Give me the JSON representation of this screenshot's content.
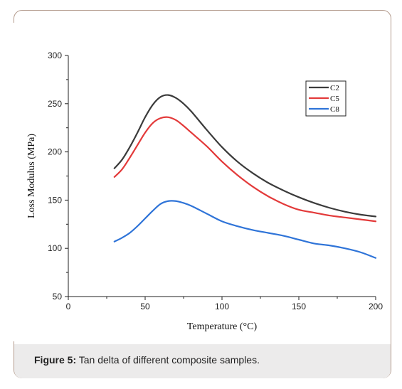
{
  "figure": {
    "caption_label": "Figure 5:",
    "caption_text": " Tan delta of different composite samples."
  },
  "chart_data": {
    "type": "line",
    "xlabel": "Temperature (°C)",
    "ylabel": "Loss Modulus (MPa)",
    "xlim": [
      0,
      200
    ],
    "ylim": [
      50,
      300
    ],
    "xticks": [
      0,
      50,
      100,
      150,
      200
    ],
    "yticks": [
      50,
      100,
      150,
      200,
      250,
      300
    ],
    "grid": false,
    "legend_position": "top-right",
    "series": [
      {
        "name": "C2",
        "color": "#3b3b3b",
        "x": [
          30,
          35,
          40,
          45,
          50,
          55,
          60,
          65,
          70,
          75,
          80,
          90,
          100,
          110,
          120,
          130,
          140,
          150,
          160,
          170,
          180,
          190,
          200
        ],
        "y": [
          183,
          192,
          205,
          220,
          236,
          249,
          257,
          259,
          256,
          250,
          242,
          223,
          205,
          190,
          178,
          168,
          160,
          153,
          147,
          142,
          138,
          135,
          133
        ]
      },
      {
        "name": "C5",
        "color": "#e33a3a",
        "x": [
          30,
          35,
          40,
          45,
          50,
          55,
          60,
          65,
          70,
          75,
          80,
          90,
          100,
          110,
          120,
          130,
          140,
          150,
          160,
          170,
          180,
          190,
          200
        ],
        "y": [
          174,
          182,
          194,
          207,
          220,
          230,
          235,
          236,
          233,
          227,
          220,
          206,
          190,
          176,
          164,
          154,
          146,
          140,
          137,
          134,
          132,
          130,
          128
        ]
      },
      {
        "name": "C8",
        "color": "#2f74d8",
        "x": [
          30,
          35,
          40,
          45,
          50,
          55,
          60,
          65,
          70,
          75,
          80,
          90,
          100,
          110,
          120,
          130,
          140,
          150,
          160,
          170,
          180,
          190,
          200
        ],
        "y": [
          107,
          111,
          116,
          123,
          131,
          139,
          146,
          149,
          149,
          147,
          144,
          136,
          128,
          123,
          119,
          116,
          113,
          109,
          105,
          103,
          100,
          96,
          90
        ]
      }
    ]
  }
}
